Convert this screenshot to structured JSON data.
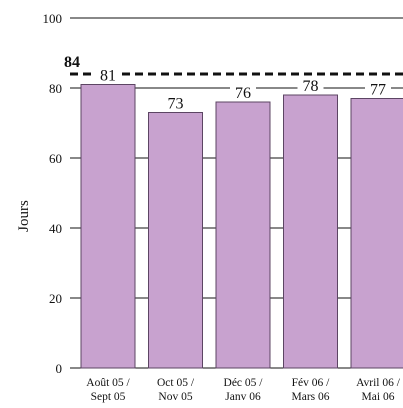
{
  "chart_data": {
    "type": "bar",
    "title": "",
    "xlabel": "",
    "ylabel": "Jours",
    "ylim": [
      0,
      100
    ],
    "yticks": [
      0,
      20,
      40,
      60,
      80,
      100
    ],
    "grid": true,
    "legend": "none",
    "categories": [
      [
        "Août 05 /",
        "Sept 05"
      ],
      [
        "Oct 05 /",
        "Nov 05"
      ],
      [
        "Déc 05 /",
        "Janv 06"
      ],
      [
        "Fév 06 /",
        "Mars 06"
      ],
      [
        "Avril 06 /",
        "Mai 06"
      ]
    ],
    "values": [
      81,
      73,
      76,
      78,
      77
    ],
    "data_labels": [
      "81",
      "73",
      "76",
      "78",
      "77"
    ],
    "reference_line": {
      "value": 84,
      "label": "84",
      "style": "dashed"
    },
    "colors": {
      "bar_fill": "#c8a2cf",
      "bar_stroke": "#5c4563",
      "grid": "#111111",
      "reference": "#111111"
    }
  }
}
